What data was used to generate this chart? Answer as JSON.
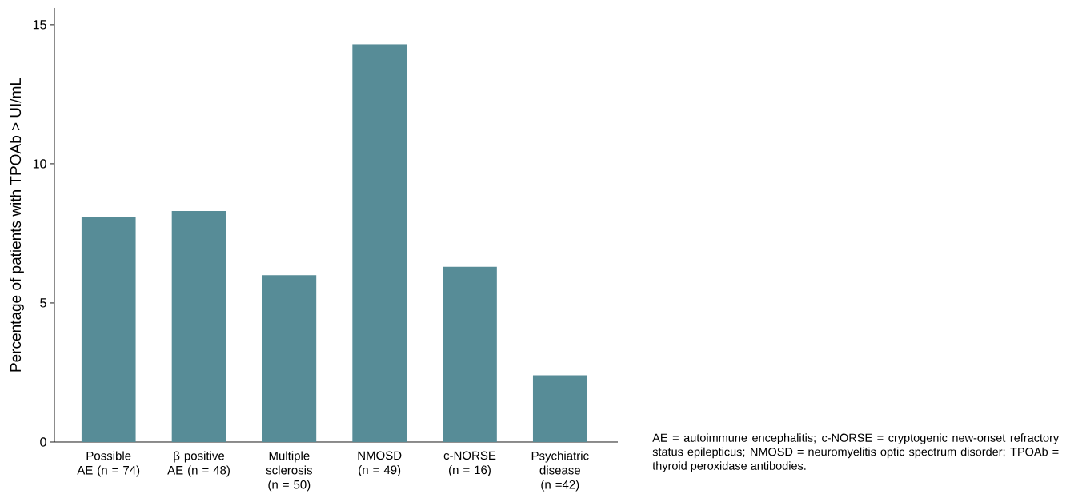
{
  "chart_data": {
    "type": "bar",
    "categories": [
      "Possible AE (n = 74)",
      "β positive AE (n = 48)",
      "Multiple sclerosis (n = 50)",
      "NMOSD (n = 49)",
      "c-NORSE (n = 16)",
      "Psychiatric disease (n =42)"
    ],
    "values": [
      8.1,
      8.3,
      6.0,
      14.3,
      6.3,
      2.4
    ],
    "color": "#578c97",
    "ylabel": "Percentage of patients with TPOAb > UI/mL",
    "ylim": [
      0,
      15.6
    ],
    "yticks": [
      0,
      5,
      10,
      15
    ],
    "grid": false,
    "annotations": [
      "AE = autoimmune encephalitis; c-NORSE = cryptogenic new-onset refractory status epilepticus; NMOSD = neuromyelitis optic spectrum disorder; TPOAb = thyroid peroxidase antibodies."
    ]
  }
}
